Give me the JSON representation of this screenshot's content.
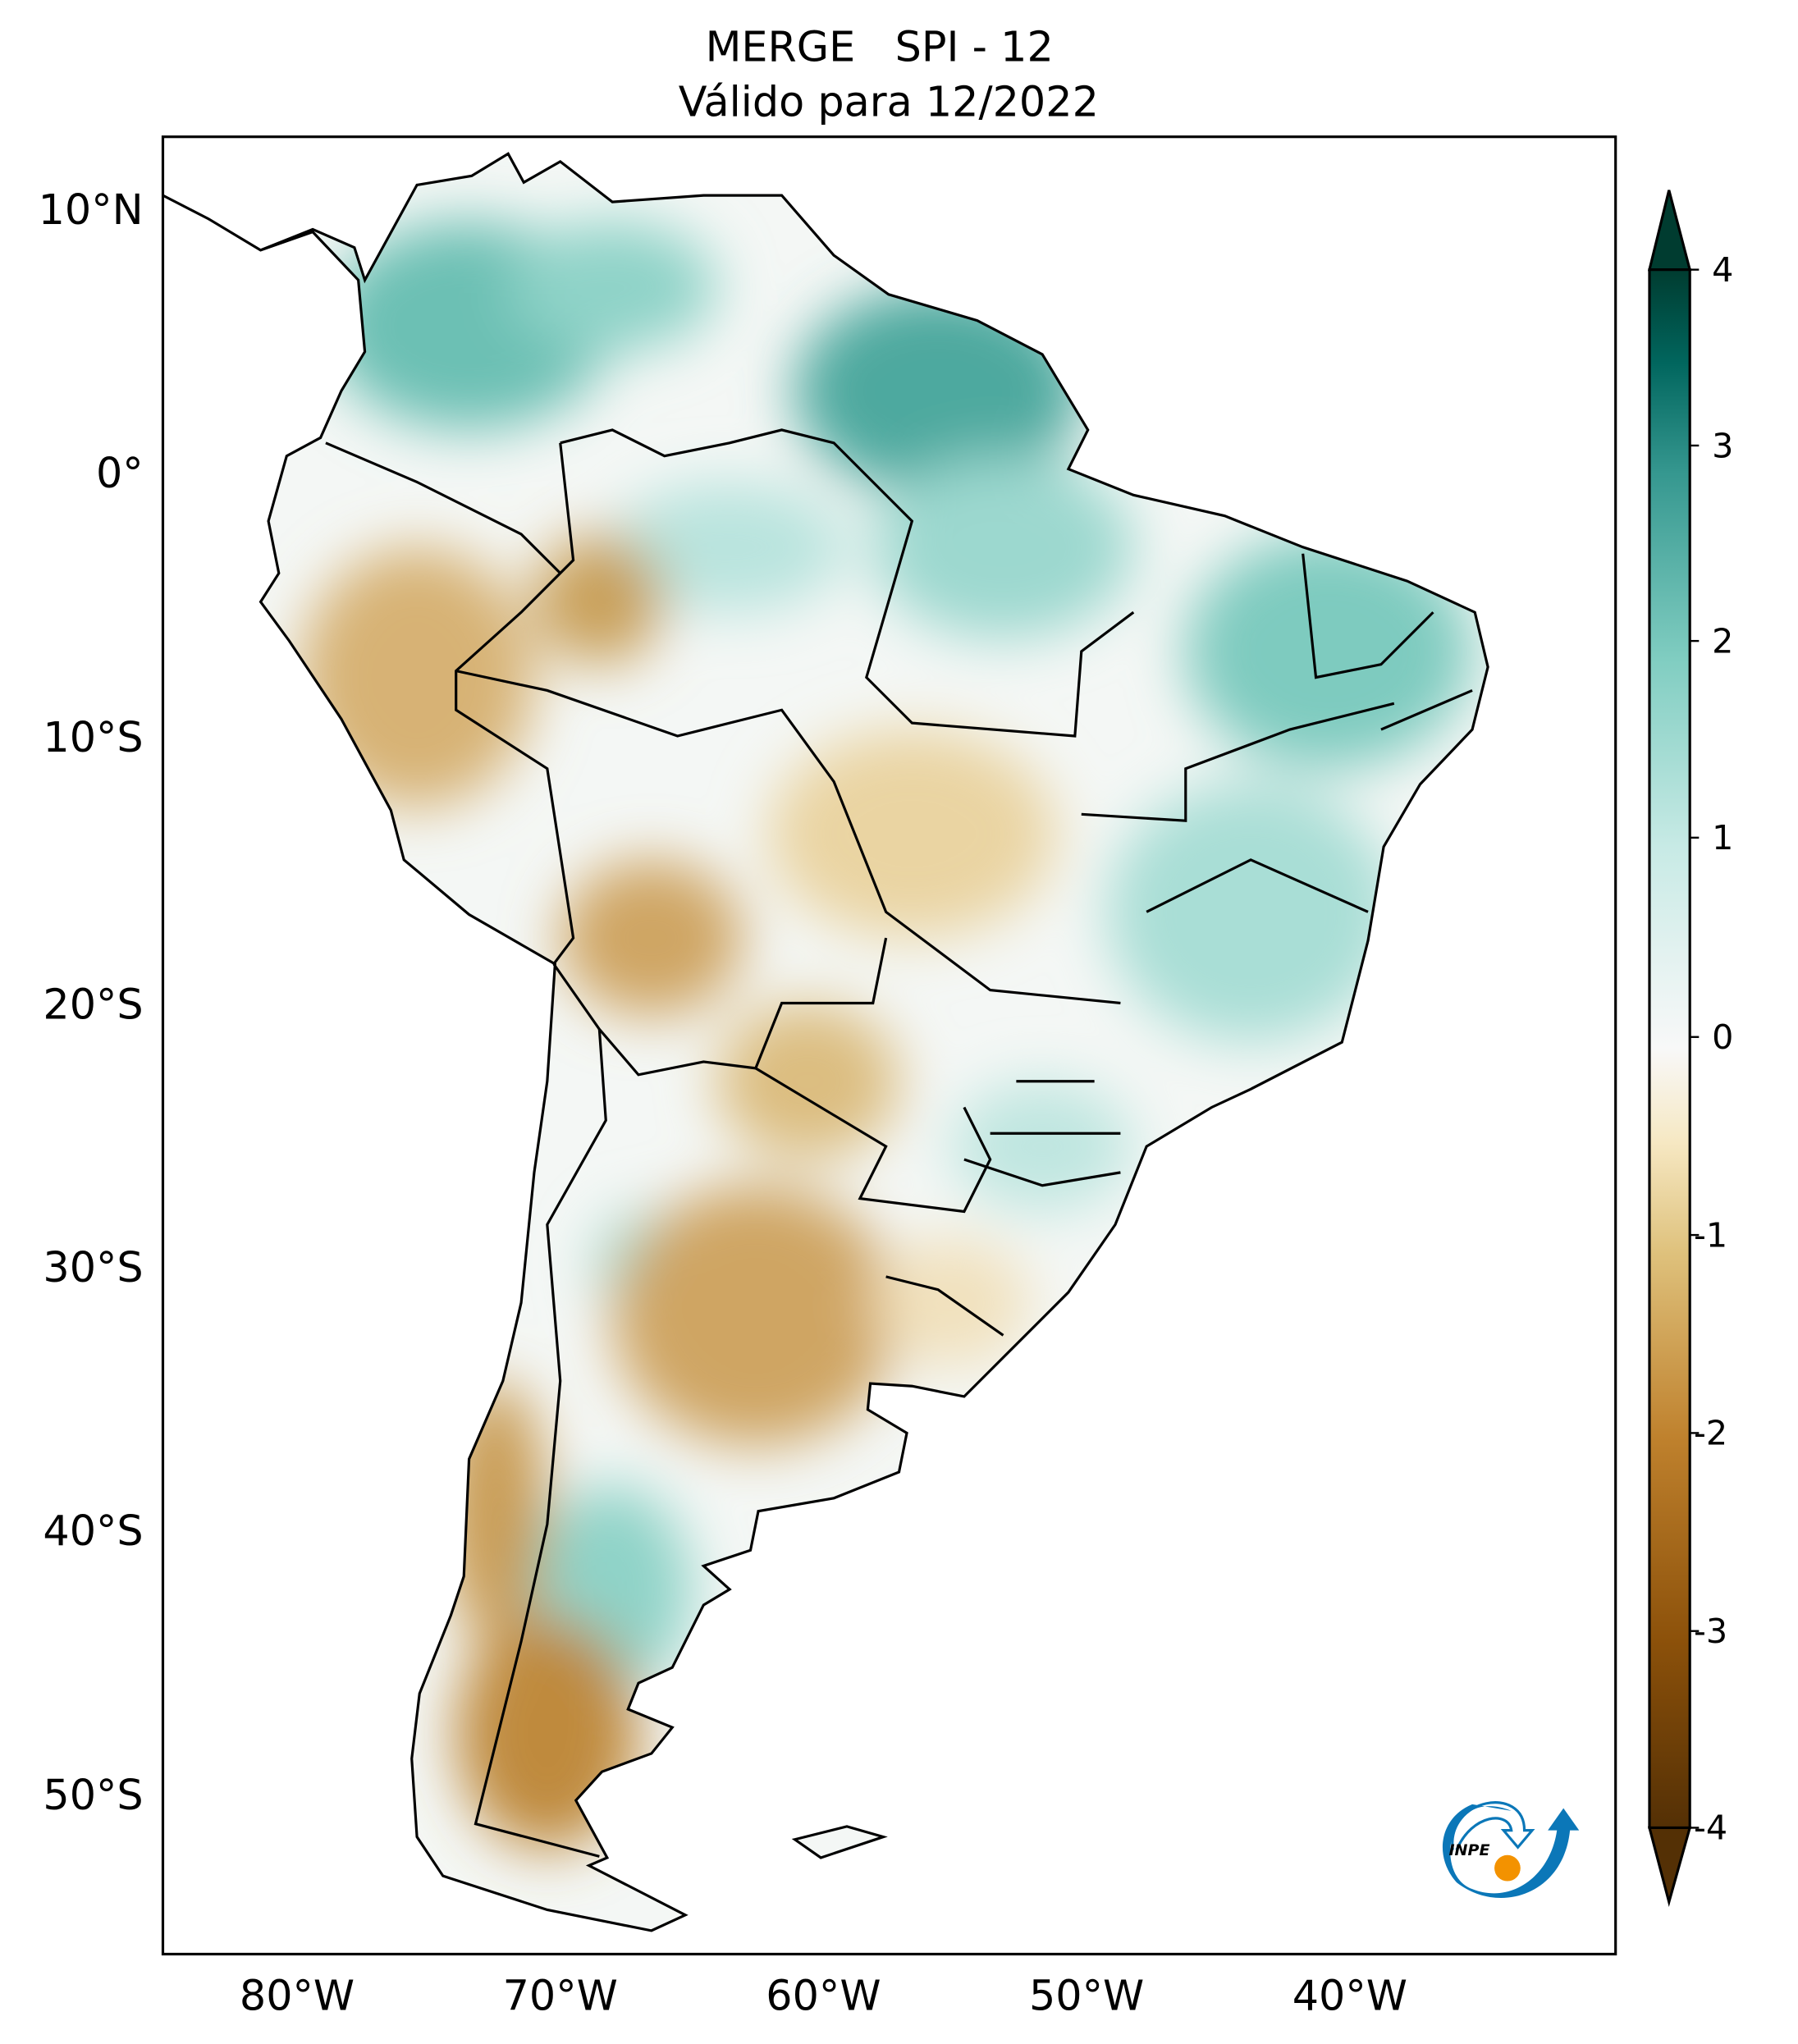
{
  "title": {
    "line1": "MERGE   SPI - 12",
    "line2": "Válido para 12/2022"
  },
  "axes": {
    "lat_labels": [
      "10°N",
      "0°",
      "10°S",
      "20°S",
      "30°S",
      "40°S",
      "50°S"
    ],
    "lon_labels": [
      "80°W",
      "70°W",
      "60°W",
      "50°W",
      "40°W"
    ]
  },
  "colorbar": {
    "ticks": [
      "4",
      "3",
      "2",
      "1",
      "0",
      "-1",
      "-2",
      "-3",
      "-4"
    ],
    "range": [
      -4,
      4
    ],
    "extend": "both",
    "colors": [
      "#543005",
      "#8c510a",
      "#bf812d",
      "#dfc27d",
      "#f6e8c3",
      "#f5f5f5",
      "#c7eae5",
      "#80cdc1",
      "#35978f",
      "#01665e",
      "#003c30"
    ]
  },
  "logo": {
    "text": "INPE"
  },
  "chart_data": {
    "type": "heatmap",
    "title": "MERGE   SPI - 12 / Válido para 12/2022",
    "variable": "SPI-12",
    "xlim": [
      -85,
      -30
    ],
    "ylim": [
      -56,
      13
    ],
    "xticks": [
      -80,
      -70,
      -60,
      -50,
      -40
    ],
    "yticks": [
      10,
      0,
      -10,
      -20,
      -30,
      -40,
      -50
    ],
    "colorbar_ticks": [
      -4,
      -3,
      -2,
      -1,
      0,
      1,
      2,
      3,
      4
    ]
  }
}
